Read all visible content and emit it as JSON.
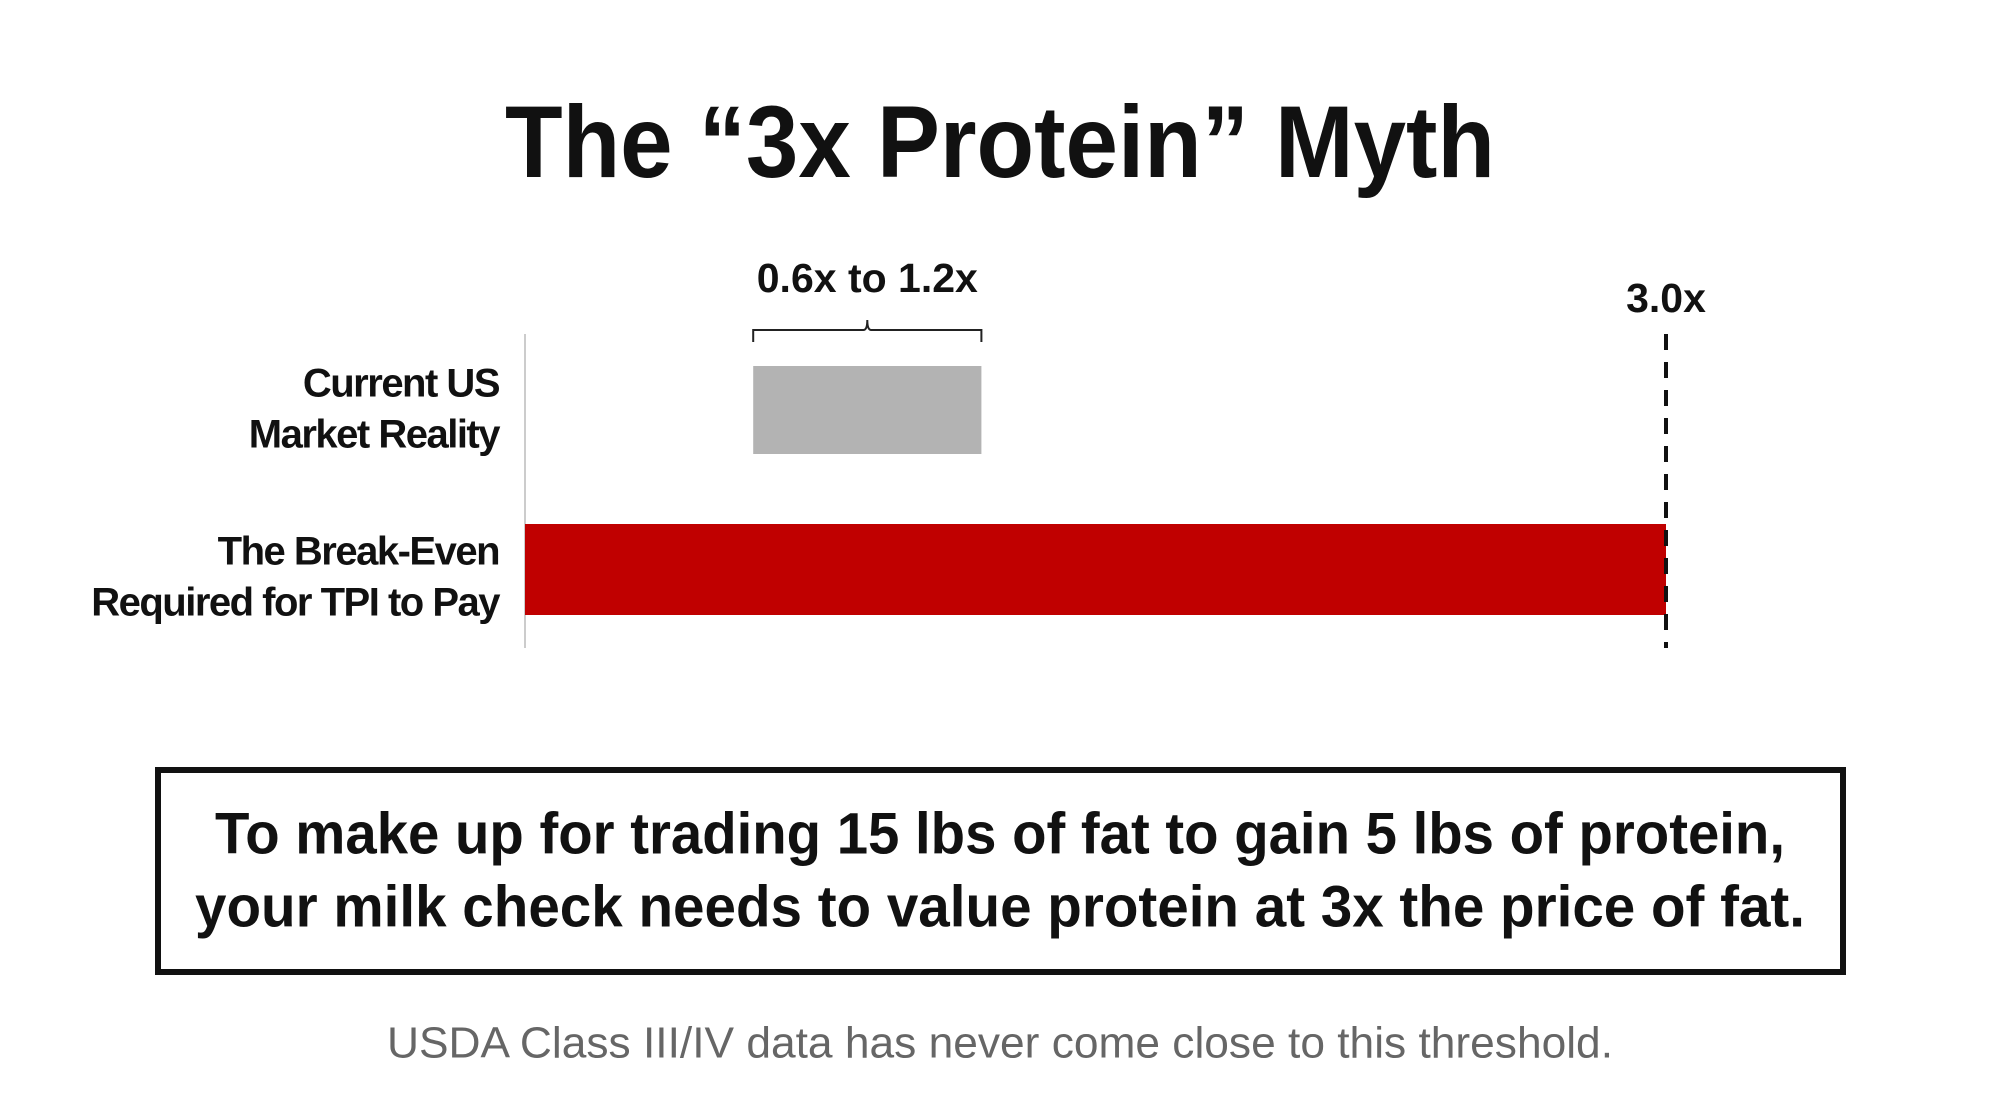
{
  "chart_data": {
    "type": "range-bar",
    "title": "The “3x Protein” Myth",
    "categories": [
      [
        "Current US",
        "Market Reality"
      ],
      [
        "The Break-Even",
        "Required for TPI to Pay"
      ]
    ],
    "ranges": [
      [
        0.6,
        1.2
      ],
      [
        0,
        3.0
      ]
    ],
    "value_labels": [
      "0.6x to 1.2x",
      "3.0x"
    ],
    "colors": [
      "#b3b3b3",
      "#c00000"
    ],
    "xlim": [
      0,
      3.0
    ]
  },
  "callout": [
    "To make up for trading 15 lbs of fat to gain 5 lbs of protein,",
    "your milk check needs to value protein at 3x the price of fat."
  ],
  "footnote": "USDA Class III/IV data has never come close to this threshold."
}
